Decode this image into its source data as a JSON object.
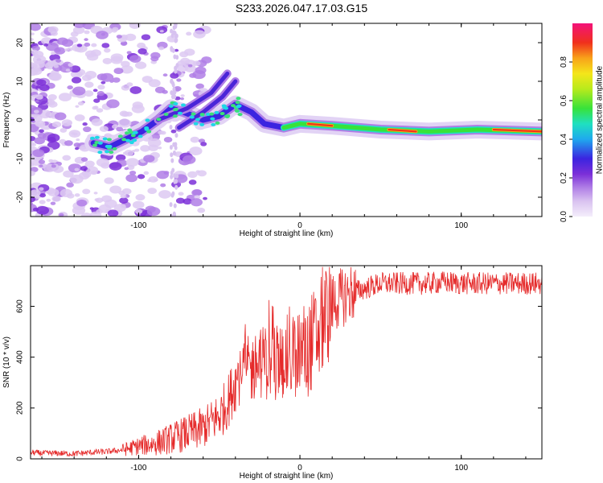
{
  "title": "S233.2026.047.17.03.G15",
  "colors": {
    "snr_line": "#e52a2a",
    "axis": "#000000"
  },
  "chart_data": [
    {
      "type": "heatmap",
      "name": "spectrogram",
      "xlabel": "Height of straight line (km)",
      "ylabel": "Frequency (Hz)",
      "xlim": [
        -167,
        150
      ],
      "ylim": [
        -25,
        25
      ],
      "xticks": [
        -100,
        0,
        100
      ],
      "yticks": [
        -20,
        -10,
        0,
        10,
        20
      ],
      "colorbar": {
        "label": "Normalized spectral amplitude",
        "range": [
          0.0,
          1.0
        ],
        "ticks": [
          0.0,
          0.2,
          0.4,
          0.6,
          0.8
        ]
      },
      "main_track": [
        {
          "x": -128,
          "y": -6
        },
        {
          "x": -118,
          "y": -7
        },
        {
          "x": -108,
          "y": -5
        },
        {
          "x": -98,
          "y": -3
        },
        {
          "x": -88,
          "y": 0
        },
        {
          "x": -80,
          "y": 3
        },
        {
          "x": -72,
          "y": 2
        },
        {
          "x": -60,
          "y": 0
        },
        {
          "x": -50,
          "y": 1
        },
        {
          "x": -40,
          "y": 4
        },
        {
          "x": -30,
          "y": 2
        },
        {
          "x": -22,
          "y": -1
        },
        {
          "x": -10,
          "y": -2
        },
        {
          "x": 0,
          "y": -1
        },
        {
          "x": 20,
          "y": -1.5
        },
        {
          "x": 50,
          "y": -2.5
        },
        {
          "x": 80,
          "y": -3
        },
        {
          "x": 110,
          "y": -2.5
        },
        {
          "x": 150,
          "y": -3
        }
      ]
    },
    {
      "type": "line",
      "name": "snr",
      "xlabel": "Height of straight line (km)",
      "ylabel": "SNR (10 * v/v)",
      "xlim": [
        -167,
        150
      ],
      "ylim": [
        0,
        760
      ],
      "xticks": [
        -100,
        0,
        100
      ],
      "yticks": [
        0,
        200,
        400,
        600
      ],
      "series": [
        {
          "name": "SNR",
          "x": [
            -167,
            -160,
            -150,
            -140,
            -130,
            -120,
            -110,
            -100,
            -90,
            -80,
            -70,
            -60,
            -50,
            -45,
            -40,
            -35,
            -30,
            -25,
            -20,
            -15,
            -10,
            -5,
            0,
            5,
            10,
            15,
            20,
            25,
            30,
            40,
            50,
            60,
            70,
            80,
            90,
            100,
            110,
            120,
            130,
            140,
            150
          ],
          "values": [
            25,
            22,
            22,
            20,
            25,
            28,
            35,
            50,
            60,
            80,
            100,
            120,
            170,
            220,
            300,
            360,
            350,
            380,
            380,
            380,
            390,
            410,
            420,
            440,
            480,
            560,
            610,
            630,
            650,
            670,
            690,
            690,
            690,
            690,
            695,
            690,
            690,
            690,
            690,
            690,
            690
          ]
        }
      ]
    }
  ]
}
